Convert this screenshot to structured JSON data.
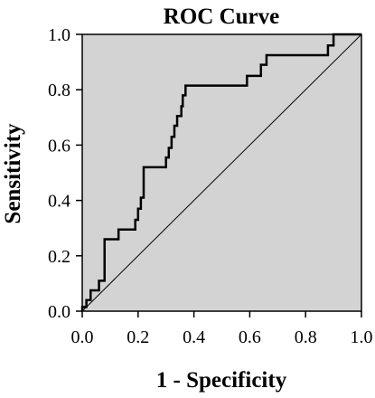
{
  "chart_data": {
    "type": "line",
    "title": "ROC Curve",
    "xlabel": "1 - Specificity",
    "ylabel": "Sensitivity",
    "xlim": [
      0.0,
      1.0
    ],
    "ylim": [
      0.0,
      1.0
    ],
    "x_ticks": [
      "0.0",
      "0.2",
      "0.4",
      "0.6",
      "0.8",
      "1.0"
    ],
    "y_ticks": [
      "0.0",
      "0.2",
      "0.4",
      "0.6",
      "0.8",
      "1.0"
    ],
    "grid": false,
    "plot_background": "#d3d3d3",
    "series": [
      {
        "kind": "roc-step",
        "color": "#000000",
        "x": [
          0.0,
          0.0,
          0.015,
          0.015,
          0.03,
          0.03,
          0.06,
          0.06,
          0.08,
          0.08,
          0.13,
          0.13,
          0.19,
          0.19,
          0.2,
          0.2,
          0.21,
          0.21,
          0.22,
          0.22,
          0.3,
          0.3,
          0.31,
          0.31,
          0.32,
          0.32,
          0.33,
          0.33,
          0.34,
          0.34,
          0.355,
          0.355,
          0.36,
          0.36,
          0.37,
          0.37,
          0.59,
          0.59,
          0.64,
          0.64,
          0.66,
          0.66,
          0.88,
          0.88,
          0.9,
          0.9,
          1.0
        ],
        "y": [
          0.0,
          0.015,
          0.015,
          0.04,
          0.04,
          0.075,
          0.075,
          0.11,
          0.11,
          0.26,
          0.26,
          0.295,
          0.295,
          0.33,
          0.33,
          0.37,
          0.37,
          0.41,
          0.41,
          0.52,
          0.52,
          0.555,
          0.555,
          0.59,
          0.59,
          0.63,
          0.63,
          0.67,
          0.67,
          0.705,
          0.705,
          0.74,
          0.74,
          0.78,
          0.78,
          0.815,
          0.815,
          0.85,
          0.85,
          0.89,
          0.89,
          0.925,
          0.925,
          0.96,
          0.96,
          1.0,
          1.0
        ]
      },
      {
        "kind": "reference-diagonal",
        "color": "#000000",
        "x": [
          0.0,
          1.0
        ],
        "y": [
          0.0,
          1.0
        ]
      }
    ]
  }
}
